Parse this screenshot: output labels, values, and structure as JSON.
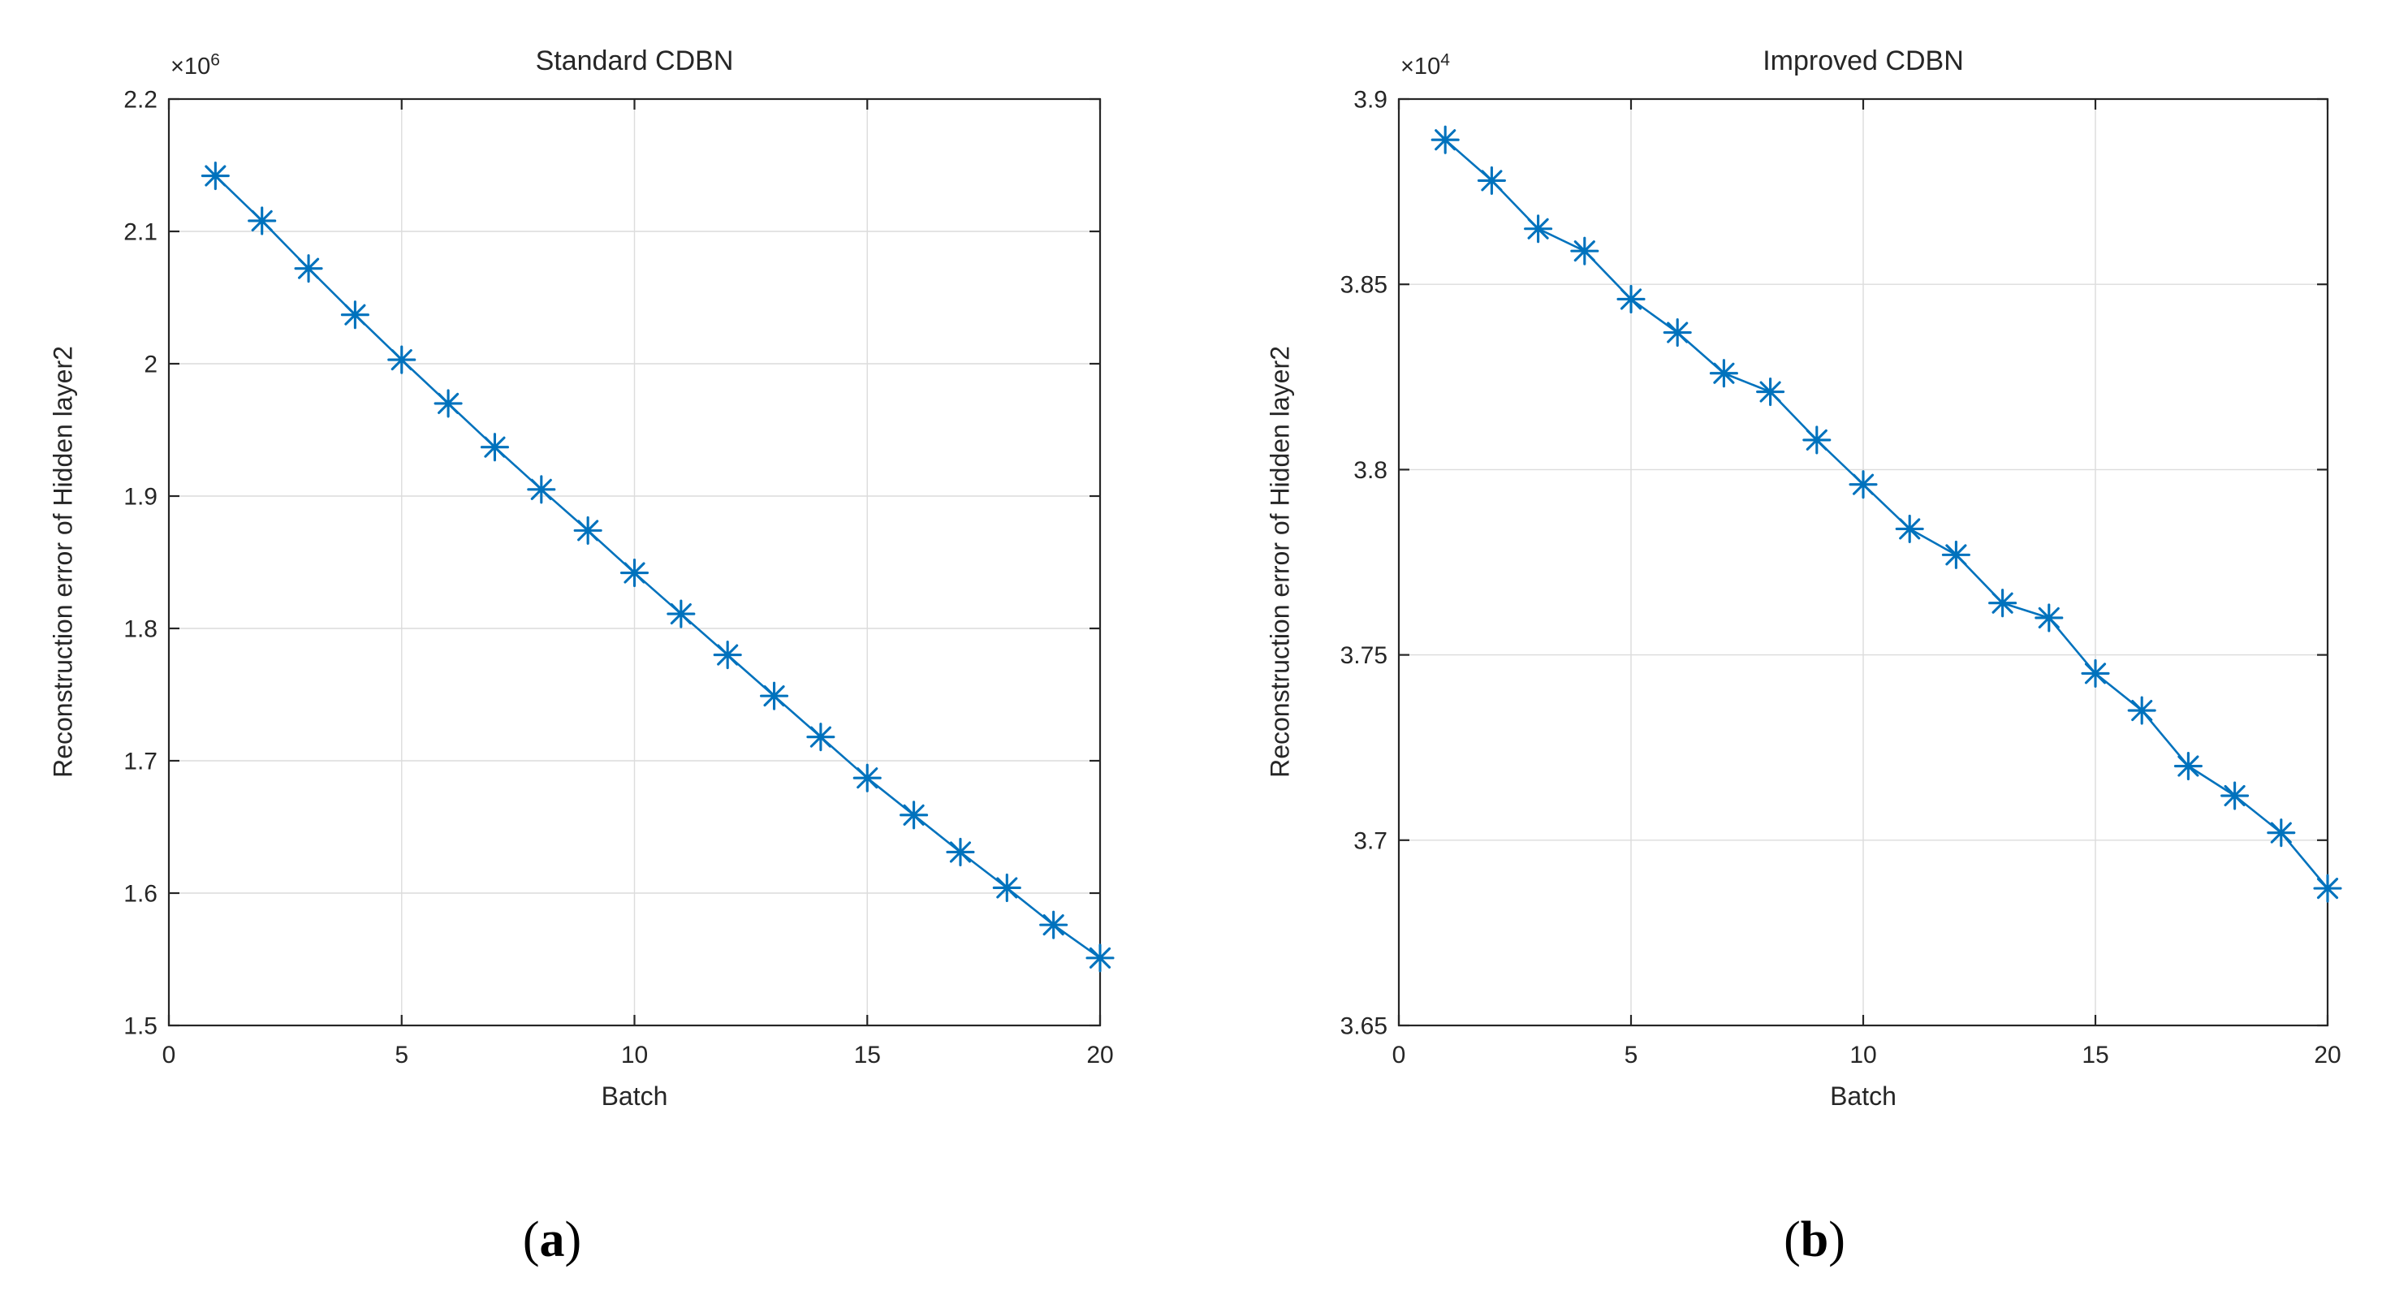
{
  "figure": {
    "background": "#ffffff",
    "accent_color": "#0072BD",
    "axis_color": "#262626",
    "grid_color": "#dcdcdc"
  },
  "chart_data": [
    {
      "type": "line",
      "title": "Standard CDBN",
      "xlabel": "Batch",
      "ylabel": "Reconstruction error of Hidden layer2",
      "y_exponent_prefix": "×10",
      "y_exponent_power": "6",
      "sublabel": {
        "open": "(",
        "letter": "a",
        "close": ")"
      },
      "legend": null,
      "grid": true,
      "marker": "asterisk",
      "line_color": "#0072BD",
      "xlim": [
        0,
        20
      ],
      "ylim": [
        1.5,
        2.2
      ],
      "xticks": [
        0,
        5,
        10,
        15,
        20
      ],
      "xtick_labels": [
        "0",
        "5",
        "10",
        "15",
        "20"
      ],
      "yticks": [
        1.5,
        1.6,
        1.7,
        1.8,
        1.9,
        2.0,
        2.1,
        2.2
      ],
      "ytick_labels": [
        "1.5",
        "1.6",
        "1.7",
        "1.8",
        "1.9",
        "2",
        "2.1",
        "2.2"
      ],
      "x": [
        1,
        2,
        3,
        4,
        5,
        6,
        7,
        8,
        9,
        10,
        11,
        12,
        13,
        14,
        15,
        16,
        17,
        18,
        19,
        20
      ],
      "values": [
        2.142,
        2.108,
        2.072,
        2.037,
        2.003,
        1.97,
        1.937,
        1.905,
        1.874,
        1.842,
        1.811,
        1.78,
        1.749,
        1.718,
        1.687,
        1.659,
        1.631,
        1.604,
        1.576,
        1.551
      ]
    },
    {
      "type": "line",
      "title": "Improved CDBN",
      "xlabel": "Batch",
      "ylabel": "Reconstruction error of Hidden layer2",
      "y_exponent_prefix": "×10",
      "y_exponent_power": "4",
      "sublabel": {
        "open": "(",
        "letter": "b",
        "close": ")"
      },
      "legend": null,
      "grid": true,
      "marker": "asterisk",
      "line_color": "#0072BD",
      "xlim": [
        0,
        20
      ],
      "ylim": [
        3.65,
        3.9
      ],
      "xticks": [
        0,
        5,
        10,
        15,
        20
      ],
      "xtick_labels": [
        "0",
        "5",
        "10",
        "15",
        "20"
      ],
      "yticks": [
        3.65,
        3.7,
        3.75,
        3.8,
        3.85,
        3.9
      ],
      "ytick_labels": [
        "3.65",
        "3.7",
        "3.75",
        "3.8",
        "3.85",
        "3.9"
      ],
      "x": [
        1,
        2,
        3,
        4,
        5,
        6,
        7,
        8,
        9,
        10,
        11,
        12,
        13,
        14,
        15,
        16,
        17,
        18,
        19,
        20
      ],
      "values": [
        3.889,
        3.878,
        3.865,
        3.859,
        3.846,
        3.837,
        3.826,
        3.821,
        3.808,
        3.796,
        3.784,
        3.777,
        3.764,
        3.76,
        3.745,
        3.735,
        3.72,
        3.712,
        3.702,
        3.687
      ]
    }
  ]
}
